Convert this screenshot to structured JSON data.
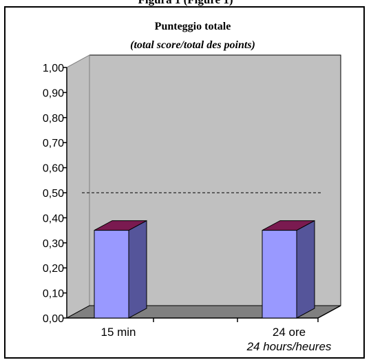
{
  "figure_caption": "Figura 1 (Figure 1)",
  "chart_data": {
    "type": "bar",
    "title": "Punteggio totale",
    "subtitle": "(total score/total des points)",
    "categories": [
      "15 min",
      "24 ore"
    ],
    "category_sublabels": [
      "",
      "24 hours/heures"
    ],
    "values": [
      0.35,
      0.35
    ],
    "ylim": [
      0,
      1
    ],
    "yticks": [
      "0,00",
      "0,10",
      "0,20",
      "0,30",
      "0,40",
      "0,50",
      "0,60",
      "0,70",
      "0,80",
      "0,90",
      "1,00"
    ],
    "reference_line": 0.5,
    "grid": false,
    "style": "3d",
    "colors": {
      "bar_front": "#9999ff",
      "bar_side": "#55559a",
      "bar_top": "#7a1a50",
      "back_wall": "#c0c0c0",
      "floor": "#808080"
    }
  }
}
